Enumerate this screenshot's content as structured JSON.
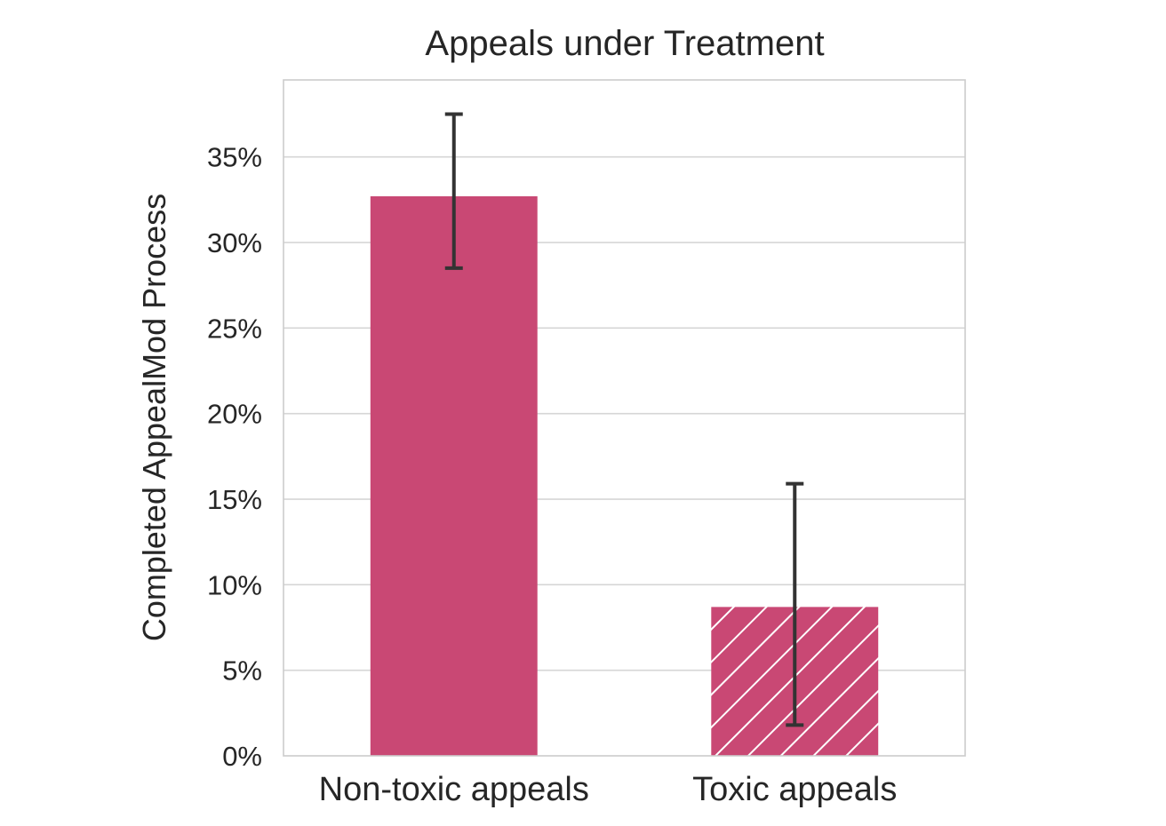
{
  "chart_data": {
    "type": "bar",
    "title": "Appeals under Treatment",
    "xlabel": "",
    "ylabel": "Completed AppealMod Process",
    "categories": [
      "Non-toxic appeals",
      "Toxic appeals"
    ],
    "values": [
      32.7,
      8.7
    ],
    "error_low": [
      28.5,
      1.8
    ],
    "error_high": [
      37.5,
      15.9
    ],
    "hatched": [
      false,
      true
    ],
    "ylim": [
      0,
      39.5
    ],
    "yticks": [
      0,
      5,
      10,
      15,
      20,
      25,
      30,
      35
    ],
    "ytick_labels": [
      "0%",
      "5%",
      "10%",
      "15%",
      "20%",
      "25%",
      "30%",
      "35%"
    ],
    "grid": true,
    "bar_color": "#c94874",
    "error_color": "#333333"
  }
}
